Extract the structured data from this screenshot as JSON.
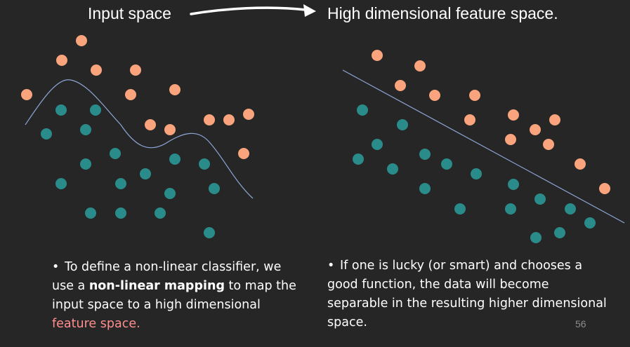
{
  "titles": {
    "left": "Input space",
    "right": "High dimensional feature space."
  },
  "colors": {
    "background": "#262626",
    "class_a": "#f9a47c",
    "class_b": "#2a8c8a",
    "boundary_line": "#8ea6d6",
    "arrow": "#ffffff",
    "highlight_text": "#ff8f8f",
    "page_number": "#8c8c8c"
  },
  "bullets": {
    "left": {
      "glyph": "•",
      "part1": "To define a non-linear classifier, we use a ",
      "bold": "non-linear mapping",
      "part2": " to map the input space to a high dimensional ",
      "highlight": "feature space."
    },
    "right": {
      "glyph": "•",
      "text": "If one is lucky (or smart) and chooses a good function, the data will become separable in the resulting higher dimensional space."
    }
  },
  "page_number": "56"
}
